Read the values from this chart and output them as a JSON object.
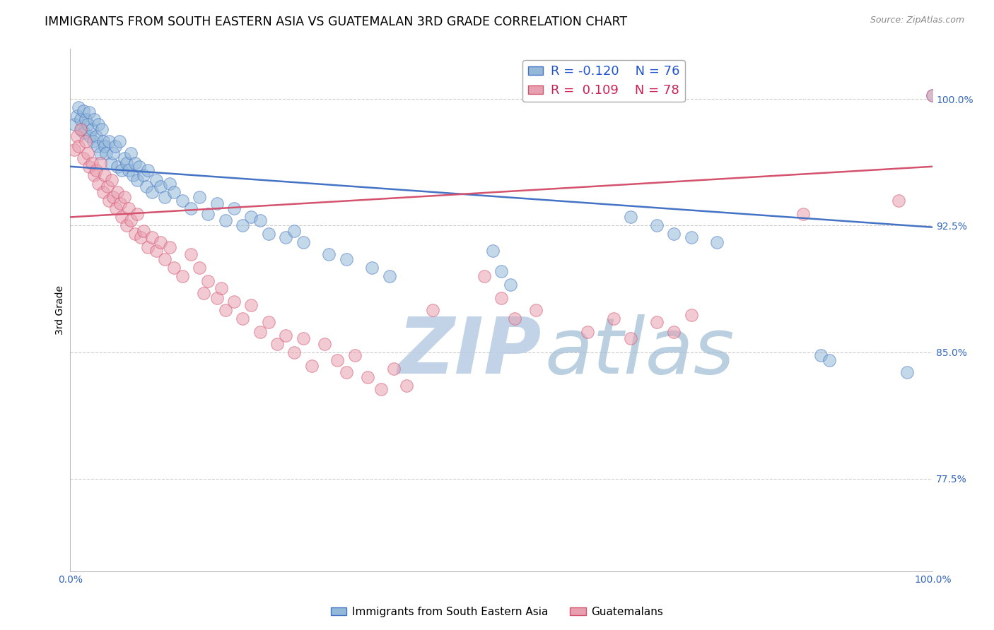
{
  "title": "IMMIGRANTS FROM SOUTH EASTERN ASIA VS GUATEMALAN 3RD GRADE CORRELATION CHART",
  "source": "Source: ZipAtlas.com",
  "ylabel": "3rd Grade",
  "ytick_labels": [
    "77.5%",
    "85.0%",
    "92.5%",
    "100.0%"
  ],
  "ytick_values": [
    0.775,
    0.85,
    0.925,
    1.0
  ],
  "xlim": [
    0.0,
    1.0
  ],
  "ylim": [
    0.72,
    1.03
  ],
  "blue_label": "Immigrants from South Eastern Asia",
  "pink_label": "Guatemalans",
  "blue_R": -0.12,
  "blue_N": 76,
  "pink_R": 0.109,
  "pink_N": 78,
  "blue_color": "#93b8d8",
  "pink_color": "#e8a0b0",
  "blue_line_color": "#4472c4",
  "pink_line_color": "#d4526e",
  "blue_scatter_x": [
    0.005,
    0.008,
    0.01,
    0.012,
    0.013,
    0.015,
    0.016,
    0.018,
    0.02,
    0.022,
    0.023,
    0.025,
    0.027,
    0.028,
    0.03,
    0.032,
    0.033,
    0.035,
    0.037,
    0.038,
    0.04,
    0.042,
    0.045,
    0.047,
    0.05,
    0.052,
    0.055,
    0.057,
    0.06,
    0.063,
    0.065,
    0.068,
    0.07,
    0.073,
    0.075,
    0.078,
    0.08,
    0.085,
    0.088,
    0.09,
    0.095,
    0.1,
    0.105,
    0.11,
    0.115,
    0.12,
    0.13,
    0.14,
    0.15,
    0.16,
    0.17,
    0.18,
    0.19,
    0.2,
    0.21,
    0.22,
    0.23,
    0.25,
    0.26,
    0.27,
    0.3,
    0.32,
    0.35,
    0.37,
    0.49,
    0.5,
    0.51,
    0.65,
    0.68,
    0.7,
    0.72,
    0.75,
    0.87,
    0.88,
    0.97,
    1.0
  ],
  "blue_scatter_y": [
    0.985,
    0.99,
    0.995,
    0.988,
    0.982,
    0.993,
    0.98,
    0.988,
    0.985,
    0.992,
    0.978,
    0.982,
    0.975,
    0.988,
    0.978,
    0.972,
    0.985,
    0.968,
    0.982,
    0.975,
    0.972,
    0.968,
    0.975,
    0.962,
    0.968,
    0.972,
    0.96,
    0.975,
    0.958,
    0.965,
    0.962,
    0.958,
    0.968,
    0.955,
    0.962,
    0.952,
    0.96,
    0.955,
    0.948,
    0.958,
    0.945,
    0.952,
    0.948,
    0.942,
    0.95,
    0.945,
    0.94,
    0.935,
    0.942,
    0.932,
    0.938,
    0.928,
    0.935,
    0.925,
    0.93,
    0.928,
    0.92,
    0.918,
    0.922,
    0.915,
    0.908,
    0.905,
    0.9,
    0.895,
    0.91,
    0.898,
    0.89,
    0.93,
    0.925,
    0.92,
    0.918,
    0.915,
    0.848,
    0.845,
    0.838,
    1.002
  ],
  "pink_scatter_x": [
    0.005,
    0.008,
    0.01,
    0.012,
    0.015,
    0.018,
    0.02,
    0.022,
    0.025,
    0.028,
    0.03,
    0.033,
    0.035,
    0.038,
    0.04,
    0.043,
    0.045,
    0.048,
    0.05,
    0.053,
    0.055,
    0.058,
    0.06,
    0.063,
    0.065,
    0.068,
    0.07,
    0.075,
    0.078,
    0.082,
    0.085,
    0.09,
    0.095,
    0.1,
    0.105,
    0.11,
    0.115,
    0.12,
    0.13,
    0.14,
    0.15,
    0.155,
    0.16,
    0.17,
    0.175,
    0.18,
    0.19,
    0.2,
    0.21,
    0.22,
    0.23,
    0.24,
    0.25,
    0.26,
    0.27,
    0.28,
    0.295,
    0.31,
    0.32,
    0.33,
    0.345,
    0.36,
    0.375,
    0.39,
    0.42,
    0.48,
    0.5,
    0.515,
    0.54,
    0.6,
    0.63,
    0.65,
    0.68,
    0.7,
    0.72,
    0.85,
    0.96,
    1.0
  ],
  "pink_scatter_y": [
    0.97,
    0.978,
    0.972,
    0.982,
    0.965,
    0.975,
    0.968,
    0.96,
    0.962,
    0.955,
    0.958,
    0.95,
    0.962,
    0.945,
    0.955,
    0.948,
    0.94,
    0.952,
    0.942,
    0.935,
    0.945,
    0.938,
    0.93,
    0.942,
    0.925,
    0.935,
    0.928,
    0.92,
    0.932,
    0.918,
    0.922,
    0.912,
    0.918,
    0.91,
    0.915,
    0.905,
    0.912,
    0.9,
    0.895,
    0.908,
    0.9,
    0.885,
    0.892,
    0.882,
    0.888,
    0.875,
    0.88,
    0.87,
    0.878,
    0.862,
    0.868,
    0.855,
    0.86,
    0.85,
    0.858,
    0.842,
    0.855,
    0.845,
    0.838,
    0.848,
    0.835,
    0.828,
    0.84,
    0.83,
    0.875,
    0.895,
    0.882,
    0.87,
    0.875,
    0.862,
    0.87,
    0.858,
    0.868,
    0.862,
    0.872,
    0.932,
    0.94,
    1.002
  ],
  "watermark_zip": "ZIP",
  "watermark_atlas": "atlas",
  "watermark_color": "#d0dff0",
  "background_color": "#ffffff",
  "grid_color": "#cccccc",
  "title_fontsize": 12.5,
  "axis_label_fontsize": 10,
  "tick_fontsize": 10,
  "legend_R_blue_color": "#2255cc",
  "legend_R_pink_color": "#cc2255",
  "legend_N_color": "#222222"
}
